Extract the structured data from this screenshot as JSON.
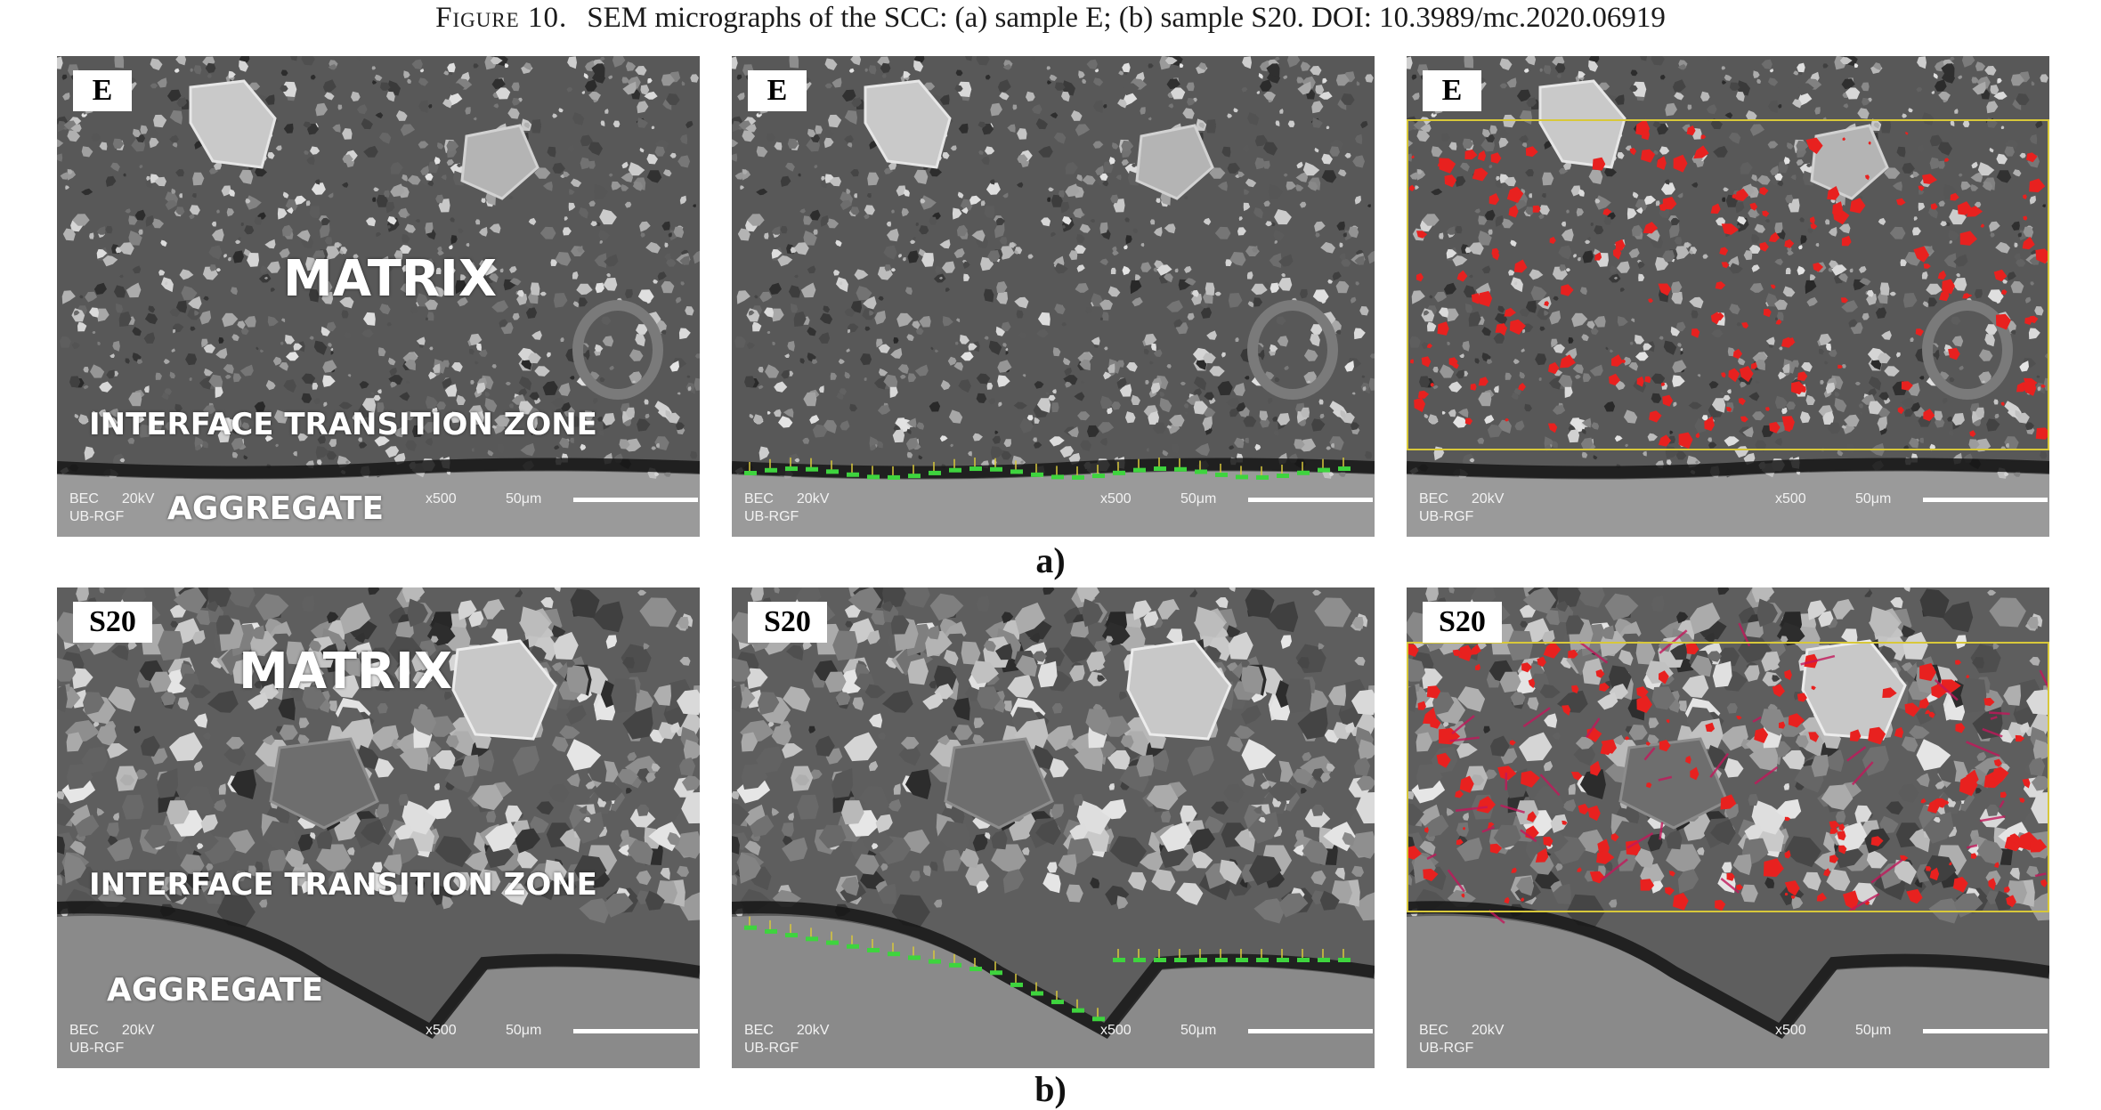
{
  "caption": {
    "figure_label": "Figure 10.",
    "text": "SEM micrographs of the SCC: (a) sample E; (b) sample S20. DOI: 10.3989/mc.2020.06919"
  },
  "rows": [
    {
      "label": "a)",
      "sample": "E",
      "overlays": {
        "matrix": "MATRIX",
        "itz": "INTERFACE TRANSITION ZONE",
        "aggregate": "AGGREGATE"
      }
    },
    {
      "label": "b)",
      "sample": "S20",
      "overlays": {
        "matrix": "MATRIX",
        "itz": "INTERFACE TRANSITION ZONE",
        "aggregate": "AGGREGATE"
      }
    }
  ],
  "sem_info": {
    "detector": "BEC",
    "voltage": "20kV",
    "site": "UB-RGF",
    "magnification": "x500",
    "scale": "50μm"
  },
  "colors": {
    "pore_highlight": "#e8211f",
    "roi_frame": "#d8c83a",
    "measure_marks": "#3ed43e"
  }
}
